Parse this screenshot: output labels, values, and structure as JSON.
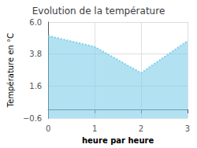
{
  "chart_data": {
    "type": "area",
    "title": "Evolution de la température",
    "xlabel": "heure par heure",
    "ylabel": "Température en °C",
    "x": [
      0,
      1,
      2,
      3
    ],
    "values": [
      5.05,
      4.3,
      2.5,
      4.7
    ],
    "color": "#7ecfea",
    "line_style": "dotted",
    "xlim": [
      0,
      3
    ],
    "ylim": [
      -0.6,
      6.0
    ],
    "xticks": [
      0,
      1,
      2,
      3
    ],
    "yticks": [
      {
        "value": -0.6,
        "label": "−0.6"
      },
      1.6,
      3.8,
      {
        "value": 6.0,
        "label": "6.0"
      }
    ],
    "grid": true
  }
}
